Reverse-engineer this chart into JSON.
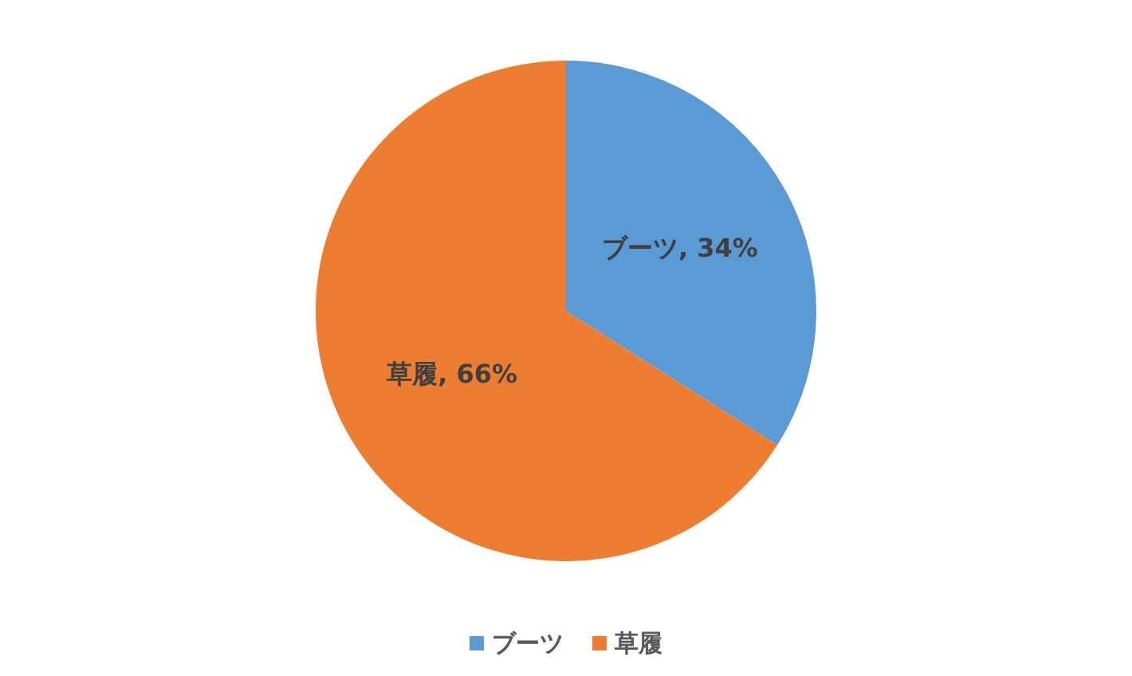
{
  "chart_data": {
    "type": "pie",
    "categories": [
      "ブーツ",
      "草履"
    ],
    "values": [
      34,
      66
    ],
    "colors": [
      "#5b9bd5",
      "#ed7d31"
    ],
    "value_labels": [
      "ブーツ, 34%",
      "草履, 66%"
    ],
    "legend": "bottom"
  }
}
